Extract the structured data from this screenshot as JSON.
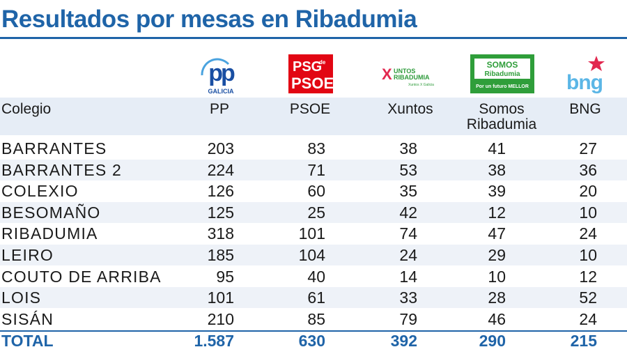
{
  "title": "Resultados por mesas en Ribadumia",
  "logos": {
    "pp": {
      "text": "pp",
      "sub": "GALICIA",
      "color": "#1a4fa3"
    },
    "psoe": {
      "line1": "PSG",
      "line1_sup": "de",
      "line2": "PSOE",
      "color": "#e20613"
    },
    "xuntos": {
      "mark": "X",
      "line1": "UNTOS",
      "line2": "RIBADUMIA",
      "tag": "Xuntos X Galicia",
      "color": "#2e9b3b"
    },
    "somos": {
      "line1": "SOMOS",
      "line2": "Ribadumia",
      "tag": "Por un futuro MELLOR",
      "color": "#2f9e3a"
    },
    "bng": {
      "text": "bng",
      "color": "#5bb6e6",
      "star_color": "#e2284f"
    }
  },
  "chart_data": {
    "type": "table",
    "title": "Resultados por mesas en Ribadumia",
    "columns": [
      "Colegio",
      "PP",
      "PSOE",
      "Xuntos",
      "Somos Ribadumia",
      "BNG"
    ],
    "rows": [
      {
        "colegio": "BARRANTES",
        "values": [
          "203",
          "83",
          "38",
          "41",
          "27"
        ]
      },
      {
        "colegio": "BARRANTES 2",
        "values": [
          "224",
          "71",
          "53",
          "38",
          "36"
        ]
      },
      {
        "colegio": "COLEXIO",
        "values": [
          "126",
          "60",
          "35",
          "39",
          "20"
        ]
      },
      {
        "colegio": "BESOMAÑO",
        "values": [
          "125",
          "25",
          "42",
          "12",
          "10"
        ]
      },
      {
        "colegio": "RIBADUMIA",
        "values": [
          "318",
          "101",
          "74",
          "47",
          "24"
        ]
      },
      {
        "colegio": "LEIRO",
        "values": [
          "185",
          "104",
          "24",
          "29",
          "10"
        ]
      },
      {
        "colegio": "COUTO DE ARRIBA",
        "values": [
          "95",
          "40",
          "14",
          "10",
          "12"
        ]
      },
      {
        "colegio": "LOIS",
        "values": [
          "101",
          "61",
          "33",
          "28",
          "52"
        ]
      },
      {
        "colegio": "SISÁN",
        "values": [
          "210",
          "85",
          "79",
          "46",
          "24"
        ]
      }
    ],
    "total": {
      "label": "TOTAL",
      "values": [
        "1.587",
        "630",
        "392",
        "290",
        "215"
      ]
    }
  },
  "colors": {
    "accent": "#1f64a8",
    "header_band": "#e6edf6"
  }
}
